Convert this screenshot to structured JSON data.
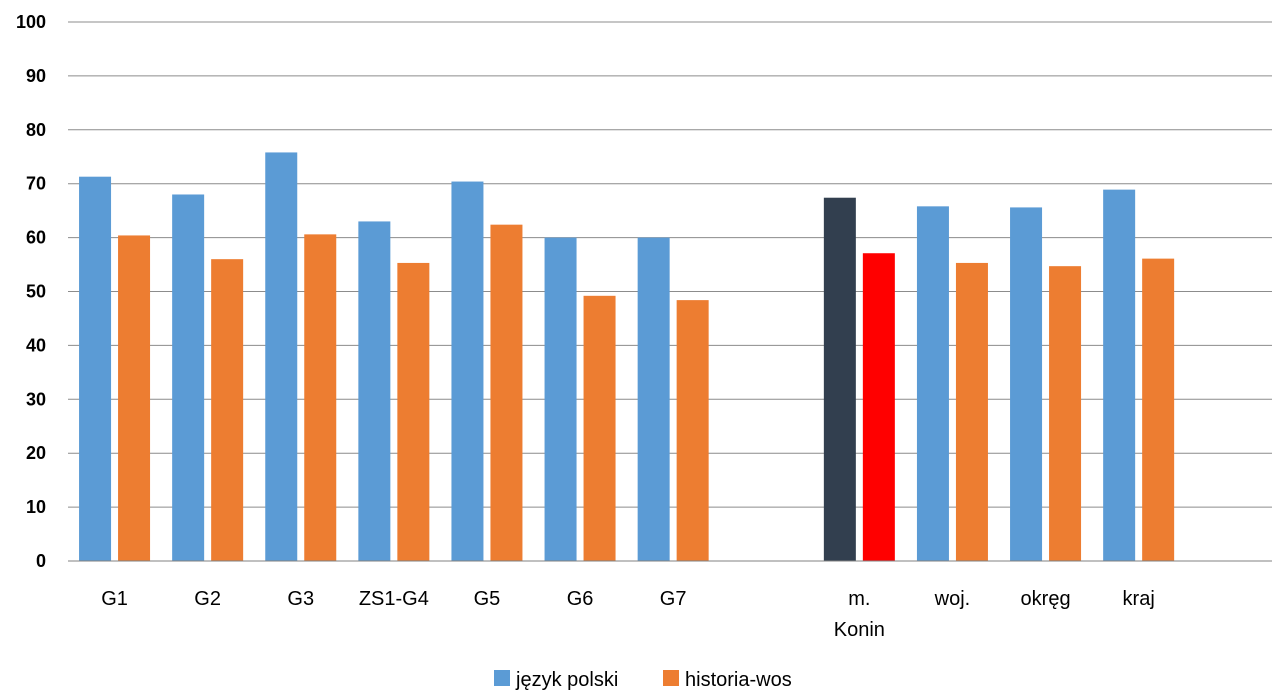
{
  "chart_data": {
    "type": "bar",
    "categories": [
      "G1",
      "G2",
      "G3",
      "ZS1-G4",
      "G5",
      "G6",
      "G7",
      "",
      "m. Konin",
      "woj.",
      "okręg",
      "kraj"
    ],
    "category_lines": [
      [
        "G1"
      ],
      [
        "G2"
      ],
      [
        "G3"
      ],
      [
        "ZS1-G4"
      ],
      [
        "G5"
      ],
      [
        "G6"
      ],
      [
        "G7"
      ],
      [
        ""
      ],
      [
        "m.",
        "Konin"
      ],
      [
        "woj."
      ],
      [
        "okręg"
      ],
      [
        "kraj"
      ]
    ],
    "series": [
      {
        "name": "język polski",
        "color": "#5B9BD5",
        "values": [
          71.3,
          68.0,
          75.8,
          63.0,
          70.4,
          60.0,
          60.0,
          null,
          67.4,
          65.8,
          65.6,
          68.9
        ],
        "point_colors": [
          null,
          null,
          null,
          null,
          null,
          null,
          null,
          null,
          "#323F4F",
          null,
          null,
          null
        ]
      },
      {
        "name": "historia-wos",
        "color": "#ED7D31",
        "values": [
          60.4,
          56.0,
          60.6,
          55.3,
          62.4,
          49.2,
          48.4,
          null,
          57.1,
          55.3,
          54.7,
          56.1
        ],
        "point_colors": [
          null,
          null,
          null,
          null,
          null,
          null,
          null,
          null,
          "#FF0000",
          null,
          null,
          null
        ]
      }
    ],
    "ylim": [
      0,
      100
    ],
    "yticks": [
      "0",
      "10",
      "20",
      "30",
      "40",
      "50",
      "60",
      "70",
      "80",
      "90",
      "100"
    ],
    "grid": true,
    "legend_position": "bottom",
    "title": "",
    "xlabel": "",
    "ylabel": ""
  }
}
